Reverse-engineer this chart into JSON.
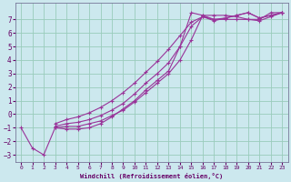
{
  "xlabel": "Windchill (Refroidissement éolien,°C)",
  "background_color": "#cce8ee",
  "grid_color": "#99ccbb",
  "line_color": "#993399",
  "xlim": [
    -0.5,
    23.5
  ],
  "ylim": [
    -3.5,
    8.2
  ],
  "xticks": [
    0,
    1,
    2,
    3,
    4,
    5,
    6,
    7,
    8,
    9,
    10,
    11,
    12,
    13,
    14,
    15,
    16,
    17,
    18,
    19,
    20,
    21,
    22,
    23
  ],
  "yticks": [
    -3,
    -2,
    -1,
    0,
    1,
    2,
    3,
    4,
    5,
    6,
    7
  ],
  "series": [
    {
      "x": [
        0,
        1,
        2,
        3,
        4,
        5,
        6,
        7,
        8,
        9,
        10,
        11,
        12,
        13,
        14,
        15,
        16,
        17,
        18,
        19,
        20,
        21,
        22,
        23
      ],
      "y": [
        -1.0,
        -2.5,
        -3.0,
        -1.0,
        -1.1,
        -1.1,
        -1.0,
        -0.7,
        -0.2,
        0.4,
        1.0,
        1.8,
        2.5,
        3.2,
        5.0,
        7.5,
        7.3,
        7.3,
        7.3,
        7.2,
        7.0,
        7.0,
        7.5,
        7.5
      ]
    },
    {
      "x": [
        3,
        4,
        5,
        6,
        7,
        8,
        9,
        10,
        11,
        12,
        13,
        14,
        15,
        16,
        17,
        18,
        19,
        20,
        21,
        22,
        23
      ],
      "y": [
        -1.0,
        -0.9,
        -0.9,
        -0.7,
        -0.5,
        -0.1,
        0.3,
        0.9,
        1.6,
        2.3,
        3.0,
        4.0,
        5.5,
        7.3,
        7.0,
        7.0,
        7.0,
        7.0,
        6.9,
        7.2,
        7.5
      ]
    },
    {
      "x": [
        3,
        4,
        5,
        6,
        7,
        8,
        9,
        10,
        11,
        12,
        13,
        14,
        15,
        16,
        17,
        18,
        19,
        20,
        21,
        22,
        23
      ],
      "y": [
        -0.9,
        -0.7,
        -0.6,
        -0.4,
        -0.1,
        0.3,
        0.8,
        1.5,
        2.3,
        3.0,
        3.8,
        5.0,
        6.5,
        7.2,
        7.0,
        7.1,
        7.3,
        7.5,
        7.1,
        7.3,
        7.5
      ]
    },
    {
      "x": [
        3,
        4,
        5,
        6,
        7,
        8,
        9,
        10,
        11,
        12,
        13,
        14,
        15,
        16,
        17,
        18,
        19,
        20,
        21,
        22,
        23
      ],
      "y": [
        -0.7,
        -0.4,
        -0.2,
        0.1,
        0.5,
        1.0,
        1.6,
        2.3,
        3.1,
        3.9,
        4.8,
        5.8,
        6.8,
        7.2,
        6.9,
        7.1,
        7.3,
        7.5,
        7.1,
        7.3,
        7.5
      ]
    }
  ]
}
